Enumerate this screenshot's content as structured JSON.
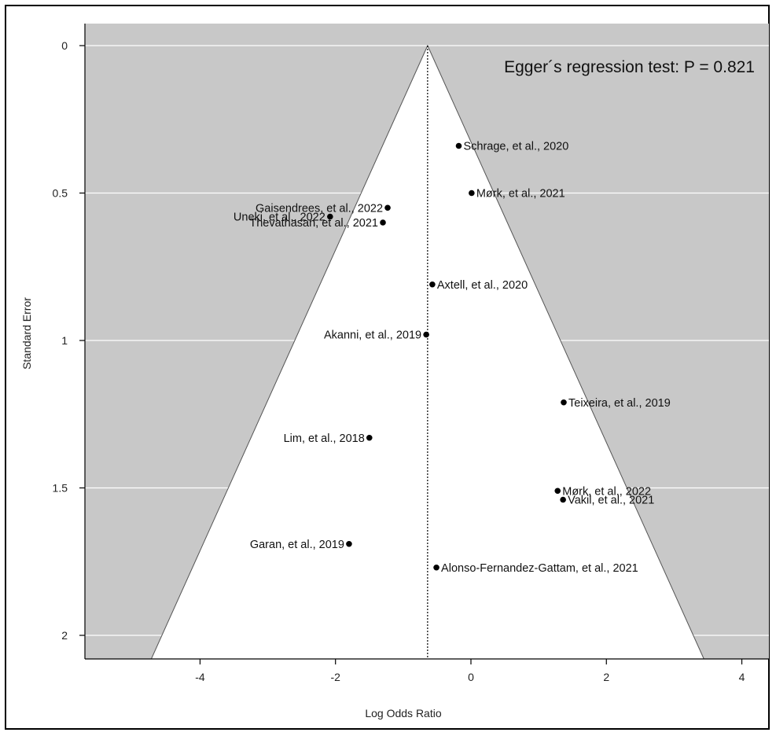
{
  "chart_data": {
    "type": "scatter",
    "title": "",
    "xlabel": "Log Odds Ratio",
    "ylabel": "Standard Error",
    "xlim": [
      -5.7,
      4.4
    ],
    "ylim": [
      2.08,
      0
    ],
    "y_reversed": true,
    "grid": true,
    "x_ticks": [
      -4,
      -2,
      0,
      2,
      4
    ],
    "y_ticks": [
      0,
      0.5,
      1,
      1.5,
      2
    ],
    "pooled_estimate": -0.64,
    "funnel": {
      "apex": [
        -0.64,
        0
      ],
      "bottom_left": [
        -4.72,
        2.08
      ],
      "bottom_right": [
        3.44,
        2.08
      ]
    },
    "annotation": "Egger´s regression test: P = 0.821",
    "colors": {
      "panel": "#c8c8c8",
      "funnel": "#ffffff",
      "points": "#000000",
      "grid": "#ffffff"
    },
    "points": [
      {
        "label": "Schrage, et al., 2020",
        "x": -0.18,
        "y": 0.34,
        "label_side": "right"
      },
      {
        "label": "Mørk, et al., 2021",
        "x": 0.01,
        "y": 0.5,
        "label_side": "right"
      },
      {
        "label": "Gaisendrees, et al., 2022",
        "x": -1.23,
        "y": 0.55,
        "label_side": "left"
      },
      {
        "label": "Uneki, et al., 2022",
        "x": -2.08,
        "y": 0.58,
        "label_side": "left"
      },
      {
        "label": "Thevathasan, et al., 2021",
        "x": -1.3,
        "y": 0.6,
        "label_side": "left"
      },
      {
        "label": "Axtell, et al., 2020",
        "x": -0.57,
        "y": 0.81,
        "label_side": "right"
      },
      {
        "label": "Akanni, et al., 2019",
        "x": -0.66,
        "y": 0.98,
        "label_side": "left"
      },
      {
        "label": "Teixeira, et al., 2019",
        "x": 1.37,
        "y": 1.21,
        "label_side": "right"
      },
      {
        "label": "Lim, et al., 2018",
        "x": -1.5,
        "y": 1.33,
        "label_side": "left"
      },
      {
        "label": "Mørk, et al., 2022",
        "x": 1.28,
        "y": 1.51,
        "label_side": "right"
      },
      {
        "label": "Vakil, et al., 2021",
        "x": 1.36,
        "y": 1.54,
        "label_side": "right"
      },
      {
        "label": "Garan, et al., 2019",
        "x": -1.8,
        "y": 1.69,
        "label_side": "left"
      },
      {
        "label": "Alonso-Fernandez-Gattam, et al., 2021",
        "x": -0.51,
        "y": 1.77,
        "label_side": "right"
      }
    ]
  }
}
